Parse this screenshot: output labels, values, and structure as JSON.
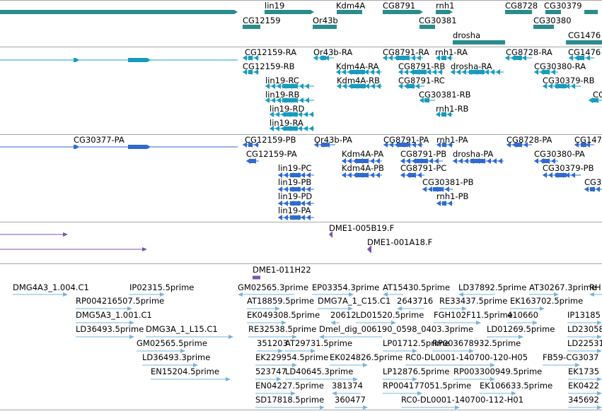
{
  "browser": {
    "track_colors": {
      "genes": "#2a8c8c",
      "transcripts": "#169cc0",
      "cds": "#2e6ad3",
      "cdna": "#7b52b2",
      "ests": "#74b4de",
      "separator": "#a7a7a7"
    },
    "tracks": [
      {
        "name": "genes",
        "labels": [
          "lin19",
          "Kdm4A",
          "CG8791",
          "rnh1",
          "CG8728",
          "CG30379",
          "CG12159",
          "Or43b",
          "CG30381",
          "CG30380",
          "drosha",
          "CG1476"
        ]
      },
      {
        "name": "transcripts",
        "labels": [
          "CG12159-RA",
          "Or43b-RA",
          "CG8791-RA",
          "rnh1-RA",
          "CG8728-RA",
          "CG1476",
          "CG12159-RB",
          "Kdm4A-RA",
          "CG8791-RB",
          "drosha-RA",
          "CG30380-RA",
          "lin19-RC",
          "Kdm4A-RB",
          "CG8791-RC",
          "CG30379-RB",
          "lin19-RB",
          "CG30381-RB",
          "CG",
          "lin19-RD",
          "rnh1-RB",
          "lin19-RA"
        ]
      },
      {
        "name": "cds",
        "labels": [
          "CG30377-PA",
          "CG12159-PB",
          "Or43b-PA",
          "CG8791-PA",
          "rnh1-PA",
          "CG8728-PA",
          "CG147",
          "CG12159-PA",
          "Kdm4A-PA",
          "CG8791-PB",
          "drosha-PA",
          "CG30380-PA",
          "lin19-PC",
          "Kdm4A-PB",
          "CG8791-PC",
          "CG30379-PB",
          "lin19-PB",
          "CG30381-PB",
          "CG3",
          "lin19-PD",
          "rnh1-PB",
          "lin19-PA"
        ]
      },
      {
        "name": "cdna",
        "labels": [
          "DME1-005B19.F",
          "DME1-001A18.F"
        ]
      },
      {
        "name": "clones",
        "labels": [
          "DME1-011H22"
        ]
      },
      {
        "name": "ests",
        "labels": [
          "DMG4A3_1.004.C1",
          "IP02315.5prime",
          "GM02565.3prime",
          "EP03354.3prime",
          "AT15430.5prime",
          "LD37892.5prime",
          "AT30267.3prime",
          "RH",
          "RP004216507.5prime",
          "AT18859.5prime",
          "DMG7A_1_C15.C1",
          "2643716",
          "RE33437.5prime",
          "EK163702.5prime",
          "DMG5A3_1.001.C1",
          "EK049308.5prime",
          "20612",
          "LD01520.5prime",
          "FGH102F11.5prime",
          "410660",
          "IP13185",
          "LD36493.5prime",
          "DMG3A_1_L15.C1",
          "RE32538.5prime",
          "Dmel_dig_006190_0598_0403.3prime",
          "LD01269.5prime",
          "LD23058",
          "GM02565.5prime",
          "351203",
          "AT29731.5prime",
          "LP01712.5prime",
          "RP003678932.5prime",
          "LD22531",
          "LD36493.3prime",
          "EK229954.5prime",
          "EK024826.5prime",
          "RC0-DL0001-140700-120-H05",
          "FB59-CG3037",
          "EN15204.5prime",
          "523747",
          "LD40645.3prime",
          "LP12876.5prime",
          "RP003300949.5prime",
          "EK1735",
          "EN04227.5prime",
          "381374",
          "RP004177051.5prime",
          "EK106633.5prime",
          "EK0422",
          "SD17818.5prime",
          "360477",
          "RC0-DL0001-140700-112-H01",
          "345692"
        ]
      }
    ]
  }
}
